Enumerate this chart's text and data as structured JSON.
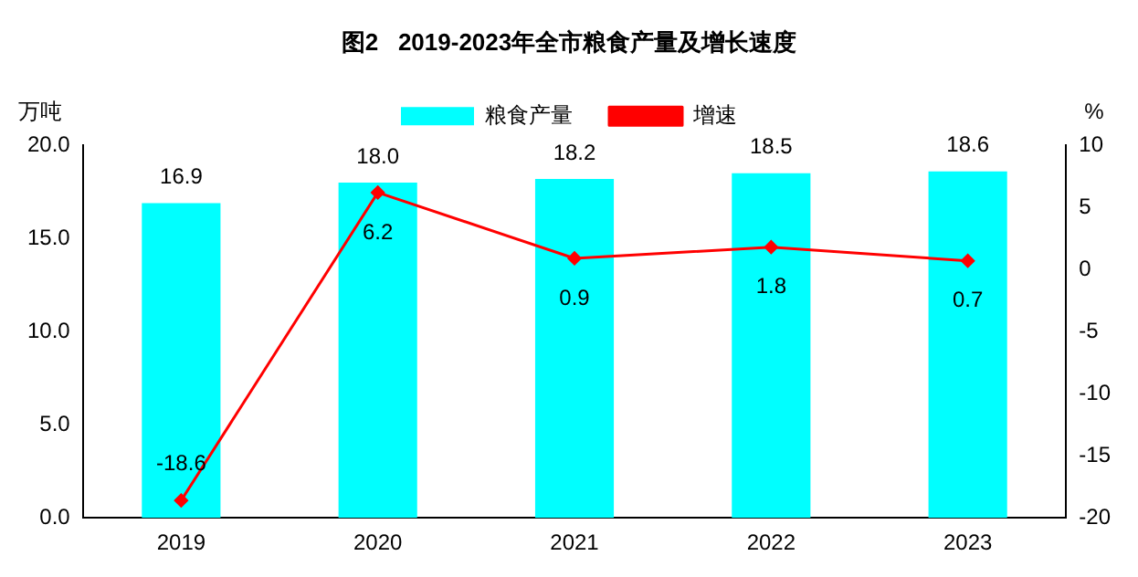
{
  "chart_data": {
    "type": "bar",
    "title": "图2   2019-2023年全市粮食产量及增长速度",
    "ylabel": "万吨",
    "y2label": "%",
    "categories": [
      "2019",
      "2020",
      "2021",
      "2022",
      "2023"
    ],
    "series": [
      {
        "name": "粮食产量",
        "color": "#00ffff",
        "values": [
          16.9,
          18.0,
          18.2,
          18.5,
          18.6
        ],
        "value_labels": [
          "16.9",
          "18.0",
          "18.2",
          "18.5",
          "18.6"
        ]
      },
      {
        "name": "增速",
        "type": "line",
        "axis": "y2",
        "color": "#ff0000",
        "marker": "diamond",
        "values": [
          -18.6,
          6.2,
          0.9,
          1.8,
          0.7
        ],
        "value_labels": [
          "-18.6",
          "6.2",
          "0.9",
          "1.8",
          "0.7"
        ]
      }
    ],
    "ylim": [
      0,
      20
    ],
    "yticks": [
      {
        "value": 0,
        "label": "0.0"
      },
      {
        "value": 5,
        "label": "5.0"
      },
      {
        "value": 10,
        "label": "10.0"
      },
      {
        "value": 15,
        "label": "15.0"
      },
      {
        "value": 20,
        "label": "20.0"
      }
    ],
    "y2lim": [
      -20,
      10
    ],
    "y2ticks": [
      -20,
      -15,
      -10,
      -5,
      0,
      5,
      10
    ],
    "grid": false,
    "legend": "top"
  }
}
